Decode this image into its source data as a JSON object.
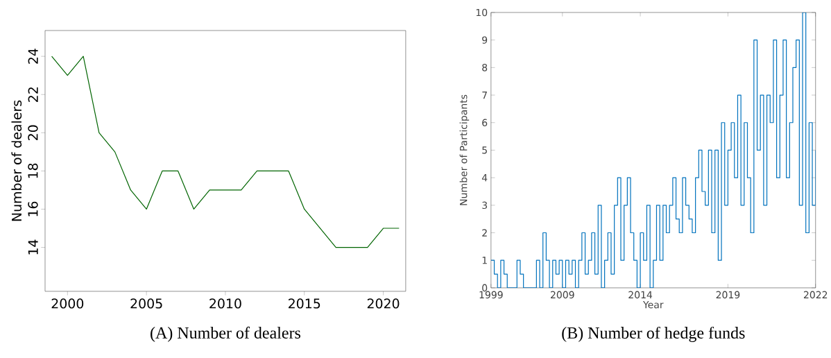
{
  "chart_data": [
    {
      "type": "line",
      "title": "(A) Number of dealers",
      "ylabel": "Number of dealers",
      "color": "#006400",
      "x": [
        1999,
        2000,
        2001,
        2002,
        2003,
        2004,
        2005,
        2006,
        2007,
        2008,
        2009,
        2010,
        2011,
        2012,
        2013,
        2014,
        2015,
        2016,
        2017,
        2018,
        2019,
        2020,
        2021
      ],
      "values": [
        24,
        23,
        24,
        20,
        19,
        17,
        16,
        18,
        18,
        16,
        17,
        17,
        17,
        18,
        18,
        18,
        16,
        15,
        14,
        14,
        14,
        15,
        15
      ],
      "xlim": [
        1998.58,
        2021.42
      ],
      "ylim": [
        11.7,
        25.35
      ],
      "xticks": [
        2000,
        2005,
        2010,
        2015,
        2020
      ],
      "yticks": [
        14,
        16,
        18,
        20,
        22,
        24
      ]
    },
    {
      "type": "step",
      "title": "(B) Number of hedge funds",
      "xlabel": "Year",
      "ylabel": "Number of Participants",
      "color": "#0072bd",
      "categories": [
        "1999",
        null,
        null,
        null,
        null,
        null,
        null,
        null,
        null,
        null,
        null,
        null,
        null,
        null,
        null,
        null,
        null,
        null,
        null,
        null,
        null,
        null,
        "2009",
        null,
        null,
        null,
        null,
        null,
        null,
        null,
        null,
        null,
        null,
        null,
        null,
        null,
        null,
        null,
        null,
        null,
        null,
        null,
        null,
        null,
        null,
        null,
        "2014",
        null,
        null,
        null,
        null,
        null,
        null,
        null,
        null,
        null,
        null,
        null,
        null,
        null,
        null,
        null,
        null,
        null,
        null,
        null,
        null,
        null,
        null,
        null,
        null,
        null,
        null,
        "2019",
        null,
        null,
        null,
        null,
        null,
        null,
        null,
        null,
        null,
        null,
        null,
        null,
        null,
        null,
        null,
        null,
        null,
        null,
        null,
        null,
        null,
        null,
        null,
        null,
        null,
        null,
        "2022"
      ],
      "values": [
        1,
        0.5,
        0,
        1,
        0.5,
        0,
        0,
        0,
        1,
        0.5,
        0,
        0,
        0,
        0,
        1,
        0,
        2,
        1,
        0,
        1,
        0.5,
        1,
        0,
        1,
        0.5,
        1,
        0,
        1,
        2,
        0.5,
        1,
        2,
        0.5,
        3,
        0,
        1,
        2,
        0.5,
        3,
        4,
        1,
        3,
        4,
        2,
        1,
        0,
        2,
        1,
        3,
        0,
        1,
        3,
        1,
        3,
        2,
        3,
        4,
        2.5,
        2,
        4,
        3,
        2.5,
        2,
        4,
        5,
        3.5,
        3,
        5,
        2,
        5,
        1,
        6,
        3,
        5,
        6,
        4,
        7,
        3,
        6,
        4,
        2,
        9,
        5,
        7,
        3,
        7,
        6,
        9,
        4,
        7,
        9,
        4,
        6,
        8,
        9,
        3,
        10,
        2,
        6,
        3,
        5
      ],
      "ylim": [
        0,
        10
      ],
      "yticks": [
        0,
        1,
        2,
        3,
        4,
        5,
        6,
        7,
        8,
        9,
        10
      ]
    }
  ]
}
